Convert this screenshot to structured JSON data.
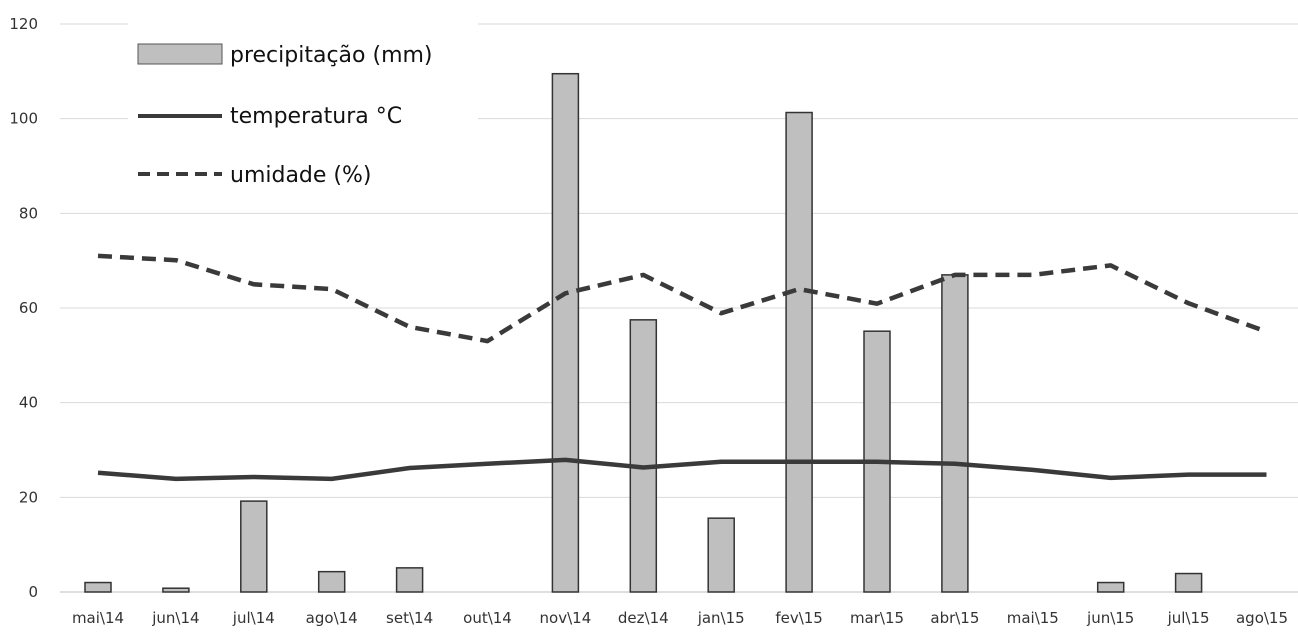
{
  "chart_data": {
    "type": "bar",
    "categories": [
      "mai\\14",
      "jun\\14",
      "jul\\14",
      "ago\\14",
      "set\\14",
      "out\\14",
      "nov\\14",
      "dez\\14",
      "jan\\15",
      "fev\\15",
      "mar\\15",
      "abr\\15",
      "mai\\15",
      "jun\\15",
      "jul\\15",
      "ago\\15"
    ],
    "ylim": [
      0,
      120
    ],
    "yticks": [
      0,
      20,
      40,
      60,
      80,
      100,
      120
    ],
    "grid": true,
    "legend_position": "top-left",
    "series": [
      {
        "name": "precipitação (mm)",
        "kind": "bar",
        "values": [
          2,
          0.8,
          19.2,
          4.3,
          5.1,
          0,
          109.5,
          57.5,
          15.6,
          101.3,
          55.1,
          67,
          0,
          2,
          3.9,
          0
        ],
        "color": "#bfbfbf"
      },
      {
        "name": "temperatura °C",
        "kind": "line-solid",
        "values": [
          25.2,
          23.9,
          24.3,
          23.9,
          26.2,
          27.1,
          27.9,
          26.3,
          27.5,
          27.5,
          27.5,
          27.1,
          25.8,
          24.1,
          24.8,
          24.8
        ],
        "color": "#3a3a3a"
      },
      {
        "name": "umidade (%)",
        "kind": "line-dashed",
        "values": [
          71,
          70.1,
          65,
          64,
          56,
          53,
          63.1,
          67,
          58.9,
          64,
          60.9,
          67,
          67,
          69,
          61,
          55
        ],
        "color": "#3a3a3a"
      }
    ]
  }
}
